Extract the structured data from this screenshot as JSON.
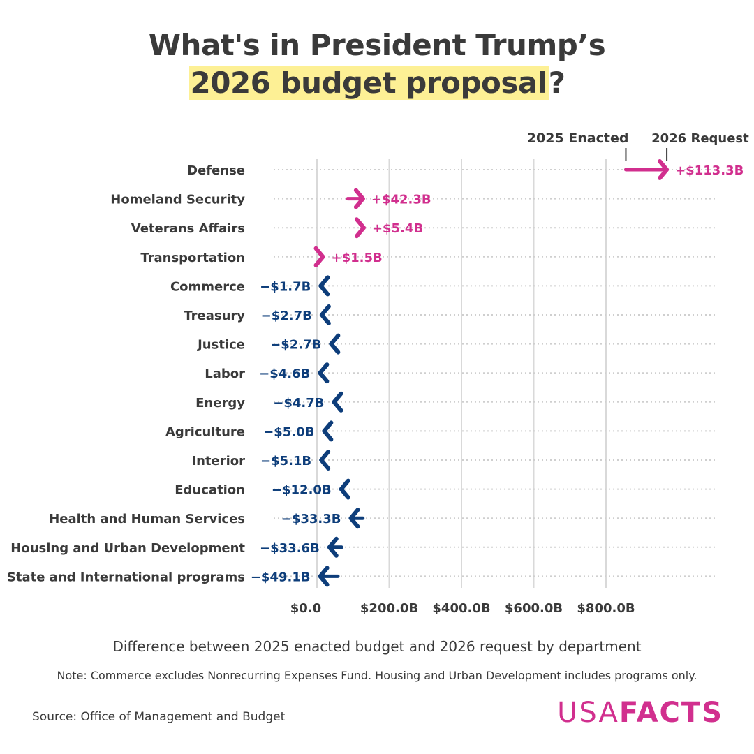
{
  "title": {
    "line1": "What's in President Trump’s",
    "line2_highlight": "2026 budget proposal",
    "line2_tail": "?"
  },
  "legend": {
    "enacted": "2025 Enacted",
    "request": "2026 Request"
  },
  "subtitle": "Difference between 2025 enacted budget and 2026 request by department",
  "note": "Note: Commerce excludes Nonrecurring Expenses Fund. Housing and Urban Development includes programs only.",
  "source": "Source: Office of Management and Budget",
  "logo": {
    "part1": "USA",
    "part2": "FACTS"
  },
  "colors": {
    "increase": "#d12f8e",
    "decrease": "#0d3d7a",
    "grid": "#d9d9d9",
    "text": "#3a3a3a"
  },
  "chart_data": {
    "type": "arrow",
    "title": "What's in President Trump’s 2026 budget proposal?",
    "xlabel": "Difference between 2025 enacted budget and 2026 request by department",
    "x_unit": "billions of dollars",
    "xlim": [
      0,
      1000
    ],
    "x_ticks": [
      0,
      200,
      400,
      600,
      800
    ],
    "x_tick_labels": [
      "$0.0",
      "$200.0B",
      "$400.0B",
      "$600.0B",
      "$800.0B"
    ],
    "departments": [
      {
        "name": "Defense",
        "enacted_2025": 855.0,
        "request_2026": 968.3,
        "change_label": "+$113.3B"
      },
      {
        "name": "Homeland Security",
        "enacted_2025": 85.0,
        "request_2026": 127.3,
        "change_label": "+$42.3B"
      },
      {
        "name": "Veterans Affairs",
        "enacted_2025": 124.0,
        "request_2026": 129.4,
        "change_label": "+$5.4B"
      },
      {
        "name": "Transportation",
        "enacted_2025": 15.0,
        "request_2026": 16.5,
        "change_label": "+$1.5B"
      },
      {
        "name": "Commerce",
        "enacted_2025": 12.0,
        "request_2026": 10.3,
        "change_label": "−$1.7B"
      },
      {
        "name": "Treasury",
        "enacted_2025": 16.0,
        "request_2026": 13.3,
        "change_label": "−$2.7B"
      },
      {
        "name": "Justice",
        "enacted_2025": 42.0,
        "request_2026": 39.3,
        "change_label": "−$2.7B"
      },
      {
        "name": "Labor",
        "enacted_2025": 13.0,
        "request_2026": 8.4,
        "change_label": "−$4.6B"
      },
      {
        "name": "Energy",
        "enacted_2025": 52.0,
        "request_2026": 47.3,
        "change_label": "−$4.7B"
      },
      {
        "name": "Agriculture",
        "enacted_2025": 25.0,
        "request_2026": 20.0,
        "change_label": "−$5.0B"
      },
      {
        "name": "Interior",
        "enacted_2025": 17.0,
        "request_2026": 11.9,
        "change_label": "−$5.1B"
      },
      {
        "name": "Education",
        "enacted_2025": 79.0,
        "request_2026": 67.0,
        "change_label": "−$12.0B"
      },
      {
        "name": "Health and Human Services",
        "enacted_2025": 127.0,
        "request_2026": 93.7,
        "change_label": "−$33.3B"
      },
      {
        "name": "Housing and Urban Development",
        "enacted_2025": 68.0,
        "request_2026": 34.4,
        "change_label": "−$33.6B"
      },
      {
        "name": "State and International programs",
        "enacted_2025": 58.0,
        "request_2026": 8.9,
        "change_label": "−$49.1B"
      }
    ]
  }
}
